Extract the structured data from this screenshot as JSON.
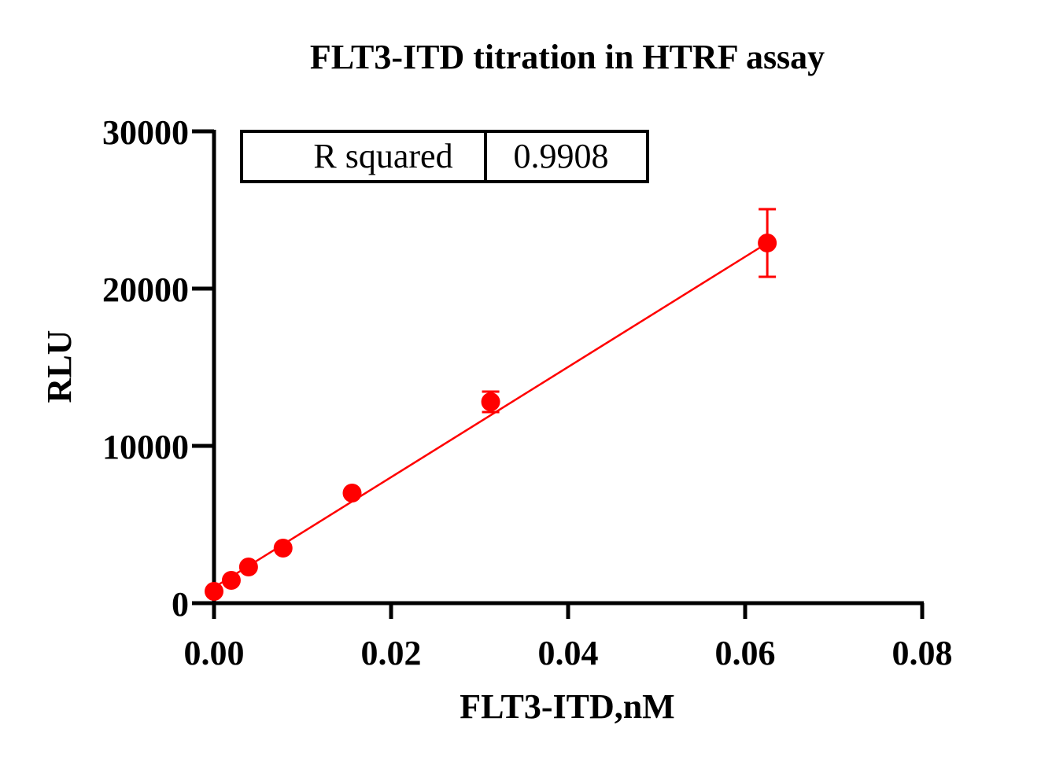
{
  "chart_data": {
    "type": "scatter",
    "title": "FLT3-ITD titration in HTRF assay",
    "xlabel": "FLT3-ITD,nM",
    "ylabel": "RLU",
    "xlim": [
      0,
      0.08
    ],
    "ylim": [
      0,
      30000
    ],
    "x_ticks": [
      0,
      0.02,
      0.04,
      0.06,
      0.08
    ],
    "x_tick_labels": [
      "0.00",
      "0.02",
      "0.04",
      "0.06",
      "0.08"
    ],
    "y_ticks": [
      0,
      10000,
      20000,
      30000
    ],
    "y_tick_labels": [
      "0",
      "10000",
      "20000",
      "30000"
    ],
    "grid": false,
    "color": "#ff0000",
    "series": [
      {
        "x": [
          0,
          0.00195,
          0.0039,
          0.0078,
          0.0156,
          0.03125,
          0.0625
        ],
        "y": [
          750,
          1450,
          2300,
          3500,
          7000,
          12800,
          22900
        ],
        "error": [
          0,
          0,
          0,
          0,
          0,
          650,
          2150
        ]
      }
    ],
    "fit_line": {
      "x": [
        0,
        0.0625
      ],
      "y": [
        1000,
        22900
      ]
    },
    "stats_table": {
      "label": "R squared",
      "value": "0.9908"
    }
  }
}
